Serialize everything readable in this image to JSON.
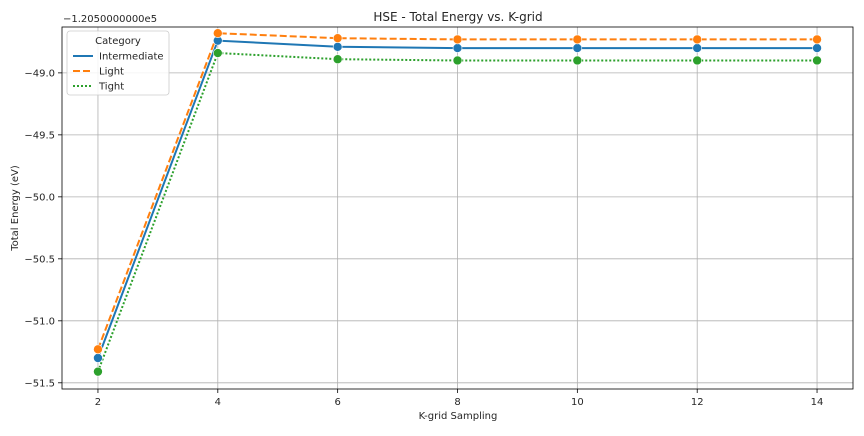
{
  "chart_data": {
    "type": "line",
    "title": "HSE - Total Energy vs. K-grid",
    "xlabel": "K-grid Sampling",
    "ylabel": "Total Energy (eV)",
    "offset_label": "−1.2050000000e5",
    "x": [
      2,
      4,
      6,
      8,
      10,
      12,
      14
    ],
    "xticks": [
      2,
      4,
      6,
      8,
      10,
      12,
      14
    ],
    "xlim": [
      1.4,
      14.6
    ],
    "ylim": [
      -51.55,
      -48.63
    ],
    "yticks": [
      -49.0,
      -49.5,
      -50.0,
      -50.5,
      -51.0,
      -51.5
    ],
    "ytick_labels": [
      "−49.0",
      "−49.5",
      "−50.0",
      "−50.5",
      "−51.0",
      "−51.5"
    ],
    "grid": true,
    "legend": {
      "title": "Category",
      "position": "top-left"
    },
    "series": [
      {
        "name": "Intermediate",
        "color": "#1f77b4",
        "dash": "solid",
        "values": [
          -51.3,
          -48.74,
          -48.79,
          -48.8,
          -48.8,
          -48.8,
          -48.8
        ]
      },
      {
        "name": "Light",
        "color": "#ff7f0e",
        "dash": "dashed",
        "values": [
          -51.23,
          -48.68,
          -48.72,
          -48.73,
          -48.73,
          -48.73,
          -48.73
        ]
      },
      {
        "name": "Tight",
        "color": "#2ca02c",
        "dash": "dotted",
        "values": [
          -51.41,
          -48.84,
          -48.89,
          -48.9,
          -48.9,
          -48.9,
          -48.9
        ]
      }
    ]
  }
}
